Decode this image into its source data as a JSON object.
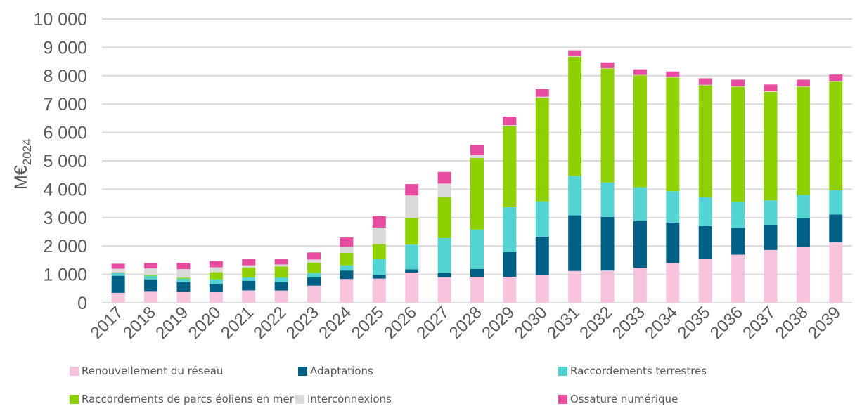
{
  "chart_data": {
    "type": "bar",
    "stacked": true,
    "title": "",
    "xlabel": "",
    "ylabel": "M€2024",
    "ylabel_main": "M€",
    "ylabel_sub": "2024",
    "ylim": [
      0,
      10000
    ],
    "yticks": [
      0,
      1000,
      2000,
      3000,
      4000,
      5000,
      6000,
      7000,
      8000,
      9000,
      10000
    ],
    "ytick_labels": [
      "0",
      "1 000",
      "2 000",
      "3 000",
      "4 000",
      "5 000",
      "6 000",
      "7 000",
      "8 000",
      "9 000",
      "10 000"
    ],
    "grid": true,
    "legend_position": "bottom",
    "categories": [
      "2017",
      "2018",
      "2019",
      "2020",
      "2021",
      "2022",
      "2023",
      "2024",
      "2025",
      "2026",
      "2027",
      "2028",
      "2029",
      "2030",
      "2031",
      "2032",
      "2033",
      "2034",
      "2035",
      "2036",
      "2037",
      "2038",
      "2039"
    ],
    "series": [
      {
        "name": "Renouvellement du réseau",
        "color": "#F8C4DD",
        "values": [
          350,
          410,
          390,
          370,
          435,
          430,
          600,
          835,
          850,
          1065,
          900,
          915,
          915,
          965,
          1120,
          1135,
          1230,
          1400,
          1560,
          1695,
          1860,
          1960,
          2140
        ]
      },
      {
        "name": "Adaptations",
        "color": "#005F85",
        "values": [
          600,
          415,
          335,
          305,
          340,
          300,
          290,
          300,
          125,
          115,
          145,
          280,
          875,
          1365,
          1960,
          1885,
          1650,
          1420,
          1140,
          945,
          890,
          1010,
          970
        ]
      },
      {
        "name": "Raccordements terrestres",
        "color": "#53D4D2",
        "values": [
          90,
          125,
          125,
          150,
          115,
          160,
          160,
          185,
          575,
          870,
          1235,
          1385,
          1580,
          1240,
          1390,
          1220,
          1190,
          1110,
          1020,
          910,
          860,
          830,
          850
        ]
      },
      {
        "name": "Raccordements de parcs éoliens en mer",
        "color": "#8FD100",
        "values": [
          30,
          25,
          35,
          250,
          345,
          390,
          360,
          440,
          515,
          940,
          1450,
          2520,
          2850,
          3645,
          4200,
          4015,
          3945,
          4010,
          3940,
          4060,
          3820,
          3810,
          3830
        ]
      },
      {
        "name": "Interconnexions",
        "color": "#D9D9D9",
        "values": [
          130,
          235,
          300,
          175,
          85,
          70,
          115,
          210,
          585,
          790,
          470,
          105,
          40,
          45,
          20,
          15,
          15,
          20,
          20,
          20,
          20,
          20,
          20
        ]
      },
      {
        "name": "Ossature numérique",
        "color": "#E84CA0",
        "values": [
          175,
          190,
          225,
          220,
          230,
          200,
          250,
          330,
          400,
          400,
          410,
          355,
          300,
          270,
          205,
          200,
          195,
          190,
          230,
          230,
          240,
          230,
          230
        ]
      }
    ]
  },
  "legend": {
    "items": [
      {
        "label": "Renouvellement du réseau",
        "color": "#F8C4DD"
      },
      {
        "label": "Adaptations",
        "color": "#005F85"
      },
      {
        "label": "Raccordements terrestres",
        "color": "#53D4D2"
      },
      {
        "label": "Raccordements de parcs éoliens en mer",
        "color": "#8FD100"
      },
      {
        "label": "Interconnexions",
        "color": "#D9D9D9"
      },
      {
        "label": "Ossature numérique",
        "color": "#E84CA0"
      }
    ]
  }
}
